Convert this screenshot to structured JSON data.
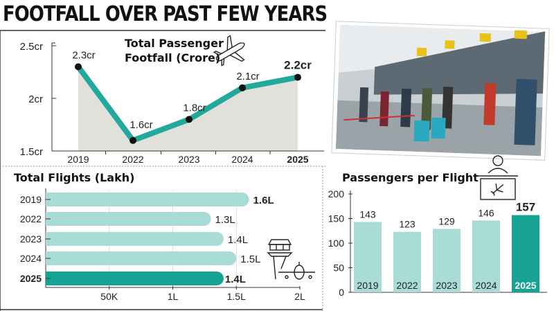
{
  "headline": "FOOTFALL OVER PAST FEW YEARS",
  "colors": {
    "line": "#22a99c",
    "bar_light": "#a9dcd7",
    "bar_highlight": "#17a394",
    "area": "#e2e0db"
  },
  "icons": [
    "airplane-icon",
    "control-tower-icon",
    "airport-desk-icon"
  ],
  "photo": {
    "subject": "airport-check-in-counter-photo"
  },
  "chart_data": [
    {
      "type": "line",
      "title": "Total Passenger Footfall (Crore)",
      "title_lines": [
        "Total Passenger",
        "Footfall (Crore)"
      ],
      "categories": [
        "2019",
        "2022",
        "2023",
        "2024",
        "2025"
      ],
      "values": [
        2.3,
        1.6,
        1.8,
        2.1,
        2.2
      ],
      "data_labels": [
        "2.3cr",
        "1.6cr",
        "1.8cr",
        "2.1cr",
        "2.2cr"
      ],
      "ylim": [
        1.5,
        2.5
      ],
      "yticks": [
        {
          "v": 2.5,
          "label": "2.5cr"
        },
        {
          "v": 2,
          "label": "2cr"
        },
        {
          "v": 1.5,
          "label": "1.5cr"
        }
      ],
      "highlight": "2025",
      "area_fill": true
    },
    {
      "type": "bar",
      "orientation": "horizontal",
      "title": "Total Flights (Lakh)",
      "categories": [
        "2019",
        "2022",
        "2023",
        "2024",
        "2025"
      ],
      "values": [
        1.6,
        1.3,
        1.4,
        1.5,
        1.4
      ],
      "data_labels": [
        "1.6L",
        "1.3L",
        "1.4L",
        "1.5L",
        "1.4L"
      ],
      "xlim": [
        0,
        2
      ],
      "xticks": [
        {
          "v": 0.5,
          "label": "50K"
        },
        {
          "v": 1,
          "label": "1L"
        },
        {
          "v": 1.5,
          "label": "1.5L"
        },
        {
          "v": 2,
          "label": "2L"
        }
      ],
      "highlight": "2025",
      "grid": true
    },
    {
      "type": "bar",
      "title": "Passengers per Flight",
      "categories": [
        "2019",
        "2022",
        "2023",
        "2024",
        "2025"
      ],
      "values": [
        143,
        123,
        129,
        146,
        157
      ],
      "ylim": [
        0,
        200
      ],
      "yticks": [
        0,
        50,
        100,
        150,
        200
      ],
      "highlight": "2025"
    }
  ]
}
